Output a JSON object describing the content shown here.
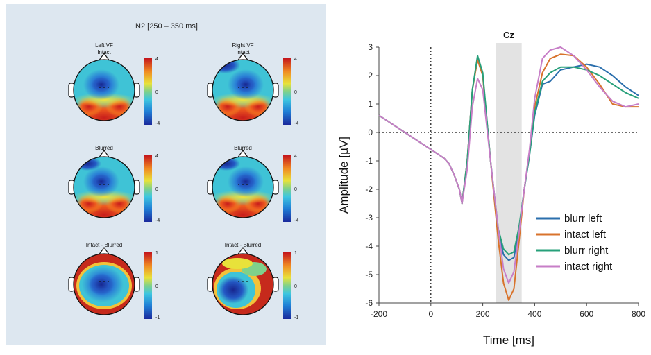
{
  "left": {
    "title": "N2 [250 – 350 ms]",
    "maps": [
      {
        "label_lines": [
          "Left VF",
          "Intact"
        ],
        "scale_max": "4",
        "scale_mid": "0",
        "scale_min": "-4",
        "pattern": "intact-left"
      },
      {
        "label_lines": [
          "Right VF",
          "Intact"
        ],
        "scale_max": "4",
        "scale_mid": "0",
        "scale_min": "-4",
        "pattern": "intact-right"
      },
      {
        "label_lines": [
          "Blurred"
        ],
        "scale_max": "4",
        "scale_mid": "0",
        "scale_min": "-4",
        "pattern": "blurred-left"
      },
      {
        "label_lines": [
          "Blurred"
        ],
        "scale_max": "4",
        "scale_mid": "0",
        "scale_min": "-4",
        "pattern": "blurred-right"
      },
      {
        "label_lines": [
          "Intact - Blurred"
        ],
        "scale_max": "1",
        "scale_mid": "0",
        "scale_min": "-1",
        "pattern": "diff-left"
      },
      {
        "label_lines": [
          "Intact - Blurred"
        ],
        "scale_max": "1",
        "scale_mid": "0",
        "scale_min": "-1",
        "pattern": "diff-right"
      }
    ]
  },
  "chart_data": {
    "type": "line",
    "title": "Cz",
    "xlabel": "Time [ms]",
    "ylabel": "Amplitude [µV]",
    "xlim": [
      -200,
      800
    ],
    "ylim": [
      -6,
      3
    ],
    "xticks": [
      -200,
      0,
      200,
      400,
      600,
      800
    ],
    "yticks": [
      3,
      2,
      1,
      0,
      -1,
      -2,
      -3,
      -4,
      -5,
      -6
    ],
    "highlight_window": [
      250,
      350
    ],
    "legend_position": "bottom-right",
    "series": [
      {
        "name": "blurr  left",
        "color": "#2b6fad",
        "x": [
          -200,
          -150,
          -100,
          -50,
          0,
          50,
          70,
          90,
          110,
          120,
          140,
          160,
          180,
          200,
          230,
          260,
          280,
          300,
          320,
          340,
          360,
          380,
          400,
          430,
          460,
          500,
          550,
          600,
          650,
          700,
          750,
          800
        ],
        "y": [
          0.6,
          0.3,
          0.0,
          -0.3,
          -0.6,
          -0.9,
          -1.1,
          -1.5,
          -2.0,
          -2.5,
          -1.0,
          1.5,
          2.6,
          2.0,
          -1.0,
          -3.5,
          -4.3,
          -4.5,
          -4.4,
          -3.4,
          -2.0,
          -0.8,
          0.6,
          1.7,
          1.8,
          2.2,
          2.3,
          2.4,
          2.3,
          2.0,
          1.6,
          1.3
        ]
      },
      {
        "name": "intact left",
        "color": "#d8732c",
        "x": [
          -200,
          -150,
          -100,
          -50,
          0,
          50,
          70,
          90,
          110,
          120,
          140,
          160,
          180,
          200,
          230,
          260,
          280,
          300,
          320,
          340,
          360,
          380,
          400,
          430,
          460,
          500,
          550,
          600,
          650,
          700,
          750,
          800
        ],
        "y": [
          0.6,
          0.3,
          0.0,
          -0.3,
          -0.6,
          -0.9,
          -1.1,
          -1.5,
          -2.0,
          -2.5,
          -1.0,
          1.5,
          2.55,
          2.0,
          -1.0,
          -3.8,
          -5.3,
          -5.9,
          -5.5,
          -3.8,
          -2.0,
          -0.7,
          0.9,
          2.1,
          2.6,
          2.75,
          2.7,
          2.3,
          1.7,
          1.0,
          0.9,
          0.9
        ]
      },
      {
        "name": "blurr right",
        "color": "#27a07a",
        "x": [
          -200,
          -150,
          -100,
          -50,
          0,
          50,
          70,
          90,
          110,
          120,
          140,
          160,
          180,
          200,
          230,
          260,
          280,
          300,
          320,
          340,
          360,
          380,
          400,
          430,
          460,
          500,
          550,
          600,
          650,
          700,
          750,
          800
        ],
        "y": [
          0.6,
          0.3,
          0.0,
          -0.3,
          -0.6,
          -0.9,
          -1.1,
          -1.5,
          -2.0,
          -2.5,
          -1.0,
          1.5,
          2.7,
          2.1,
          -1.0,
          -3.4,
          -4.1,
          -4.3,
          -4.2,
          -3.3,
          -2.0,
          -0.8,
          0.7,
          1.8,
          2.1,
          2.3,
          2.3,
          2.2,
          2.0,
          1.7,
          1.4,
          1.2
        ]
      },
      {
        "name": "intact right",
        "color": "#c77ec7",
        "x": [
          -200,
          -150,
          -100,
          -50,
          0,
          50,
          70,
          90,
          110,
          120,
          140,
          160,
          180,
          200,
          230,
          260,
          280,
          300,
          320,
          340,
          360,
          380,
          400,
          430,
          460,
          500,
          550,
          600,
          650,
          700,
          750,
          800
        ],
        "y": [
          0.6,
          0.3,
          0.0,
          -0.3,
          -0.6,
          -0.9,
          -1.1,
          -1.5,
          -2.0,
          -2.5,
          -1.3,
          0.9,
          1.9,
          1.5,
          -1.0,
          -3.4,
          -4.8,
          -5.3,
          -4.9,
          -3.5,
          -2.0,
          -0.6,
          1.2,
          2.6,
          2.9,
          3.0,
          2.7,
          2.2,
          1.6,
          1.1,
          0.9,
          1.0
        ]
      }
    ]
  }
}
